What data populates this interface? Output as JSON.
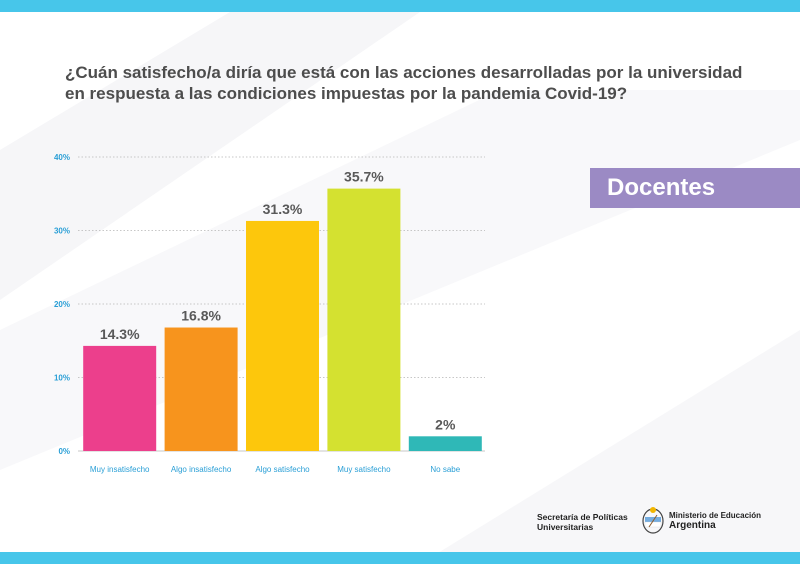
{
  "title_lines": [
    "¿Cuán satisfecho/a diría que está con las acciones desarrolladas por la universidad",
    "en respuesta a las condiciones impuestas por la pandemia Covid-19?"
  ],
  "badge_label": "Docentes",
  "footer": {
    "left_org": [
      "Secretaría de Políticas",
      "Universitarias"
    ],
    "right_org_sub": "Ministerio de Educación",
    "right_org_main": "Argentina"
  },
  "colors": {
    "top_bar": "#47c6ea",
    "badge": "#9b8ac4",
    "axis_text": "#2a9fd6"
  },
  "chart_data": {
    "type": "bar",
    "categories": [
      "Muy insatisfecho",
      "Algo insatisfecho",
      "Algo satisfecho",
      "Muy satisfecho",
      "No sabe"
    ],
    "values": [
      14.3,
      16.8,
      31.3,
      35.7,
      2
    ],
    "value_labels": [
      "14.3%",
      "16.8%",
      "31.3%",
      "35.7%",
      "2%"
    ],
    "bar_colors": [
      "#ec3f8c",
      "#f7941d",
      "#fdc70c",
      "#d4e130",
      "#2fb8b7"
    ],
    "ylim": [
      0,
      40
    ],
    "yticks": [
      0,
      10,
      20,
      30,
      40
    ],
    "ytick_labels": [
      "0%",
      "10%",
      "20%",
      "30%",
      "40%"
    ],
    "grid": true
  }
}
